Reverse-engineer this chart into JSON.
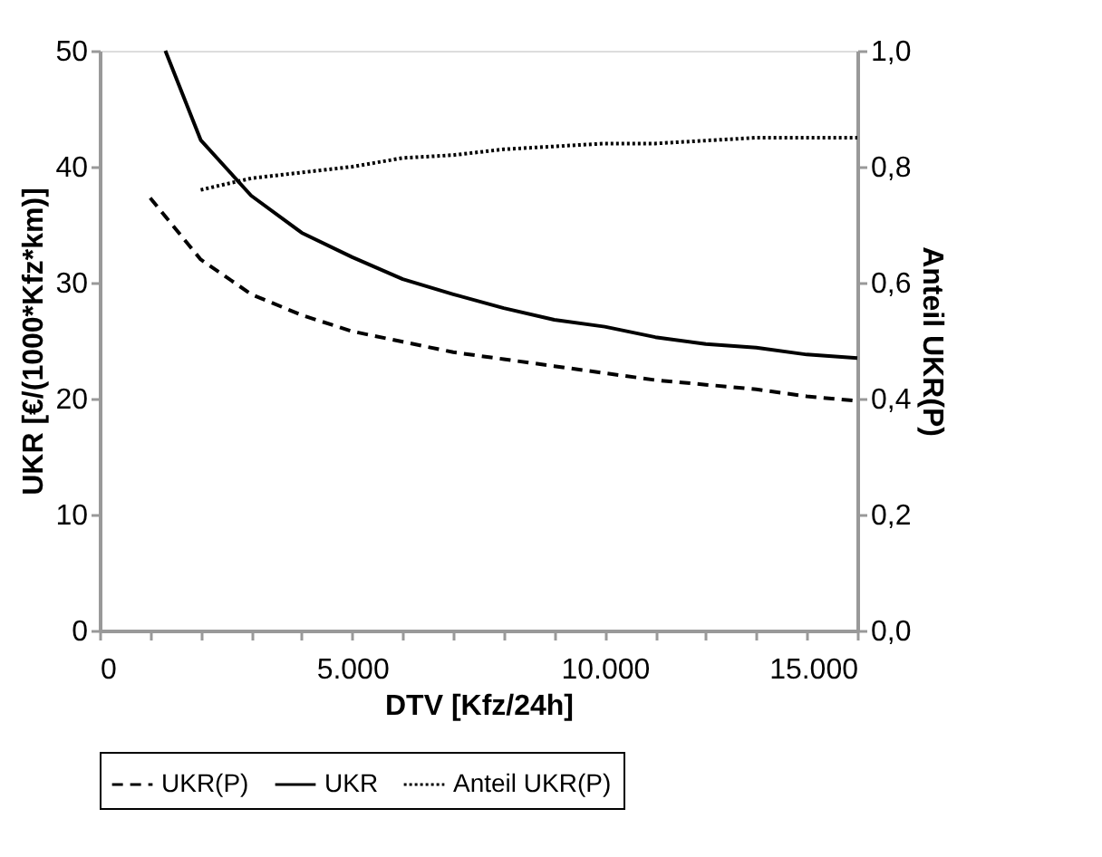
{
  "chart_data": {
    "type": "line",
    "xlabel": "DTV [Kfz/24h]",
    "ylabel": "UKR  [€/(1000*Kfz*km)]",
    "y2label": "Anteil UKR(P)",
    "xlim": [
      0,
      15000
    ],
    "xticks": [
      {
        "value": 0,
        "label": "0"
      },
      {
        "value": 1000,
        "label": null
      },
      {
        "value": 2000,
        "label": null
      },
      {
        "value": 3000,
        "label": null
      },
      {
        "value": 4000,
        "label": null
      },
      {
        "value": 5000,
        "label": "5.000"
      },
      {
        "value": 6000,
        "label": null
      },
      {
        "value": 7000,
        "label": null
      },
      {
        "value": 8000,
        "label": null
      },
      {
        "value": 9000,
        "label": null
      },
      {
        "value": 10000,
        "label": "10.000"
      },
      {
        "value": 11000,
        "label": null
      },
      {
        "value": 12000,
        "label": null
      },
      {
        "value": 13000,
        "label": null
      },
      {
        "value": 14000,
        "label": null
      },
      {
        "value": 15000,
        "label": "15.000"
      }
    ],
    "ylim": [
      0,
      50
    ],
    "yticks": [
      0,
      10,
      20,
      30,
      40,
      50
    ],
    "y2lim": [
      0,
      1
    ],
    "y2ticks": [
      {
        "value": 0,
        "label": "0,0"
      },
      {
        "value": 0.2,
        "label": "0,2"
      },
      {
        "value": 0.4,
        "label": "0,4"
      },
      {
        "value": 0.6,
        "label": "0,6"
      },
      {
        "value": 0.8,
        "label": "0,8"
      },
      {
        "value": 1,
        "label": "1,0"
      }
    ],
    "grid": false,
    "legend": "bottom",
    "marker": "none",
    "series": [
      {
        "name": "UKR(P)",
        "color": "#000000",
        "line_style": "dashed",
        "x": [
          1000,
          2000,
          3000,
          4000,
          5000,
          6000,
          7000,
          8000,
          9000,
          10000,
          11000,
          12000,
          13000,
          14000,
          15000
        ],
        "values": [
          37.3,
          32,
          29,
          27.2,
          25.8,
          24.9,
          24,
          23.4,
          22.8,
          22.2,
          21.6,
          21.2,
          20.8,
          20.2,
          19.8
        ]
      },
      {
        "name": "UKR",
        "color": "#000000",
        "line_style": "solid",
        "x": [
          1300,
          2000,
          3000,
          4000,
          5000,
          6000,
          7000,
          8000,
          9000,
          10000,
          11000,
          12000,
          13000,
          14000,
          15000
        ],
        "values": [
          50,
          42.3,
          37.5,
          34.3,
          32.2,
          30.3,
          29,
          27.8,
          26.8,
          26.2,
          25.3,
          24.7,
          24.4,
          23.8,
          23.5
        ]
      },
      {
        "name": "Anteil UKR(P)",
        "color": "#000000",
        "line_style": "dotted",
        "axis": "y2",
        "x": [
          2000,
          3000,
          4000,
          5000,
          6000,
          7000,
          8000,
          9000,
          10000,
          11000,
          12000,
          13000,
          14000,
          15000
        ],
        "values": [
          0.76,
          0.78,
          0.79,
          0.8,
          0.815,
          0.82,
          0.83,
          0.835,
          0.84,
          0.84,
          0.845,
          0.85,
          0.85,
          0.85
        ]
      }
    ]
  }
}
